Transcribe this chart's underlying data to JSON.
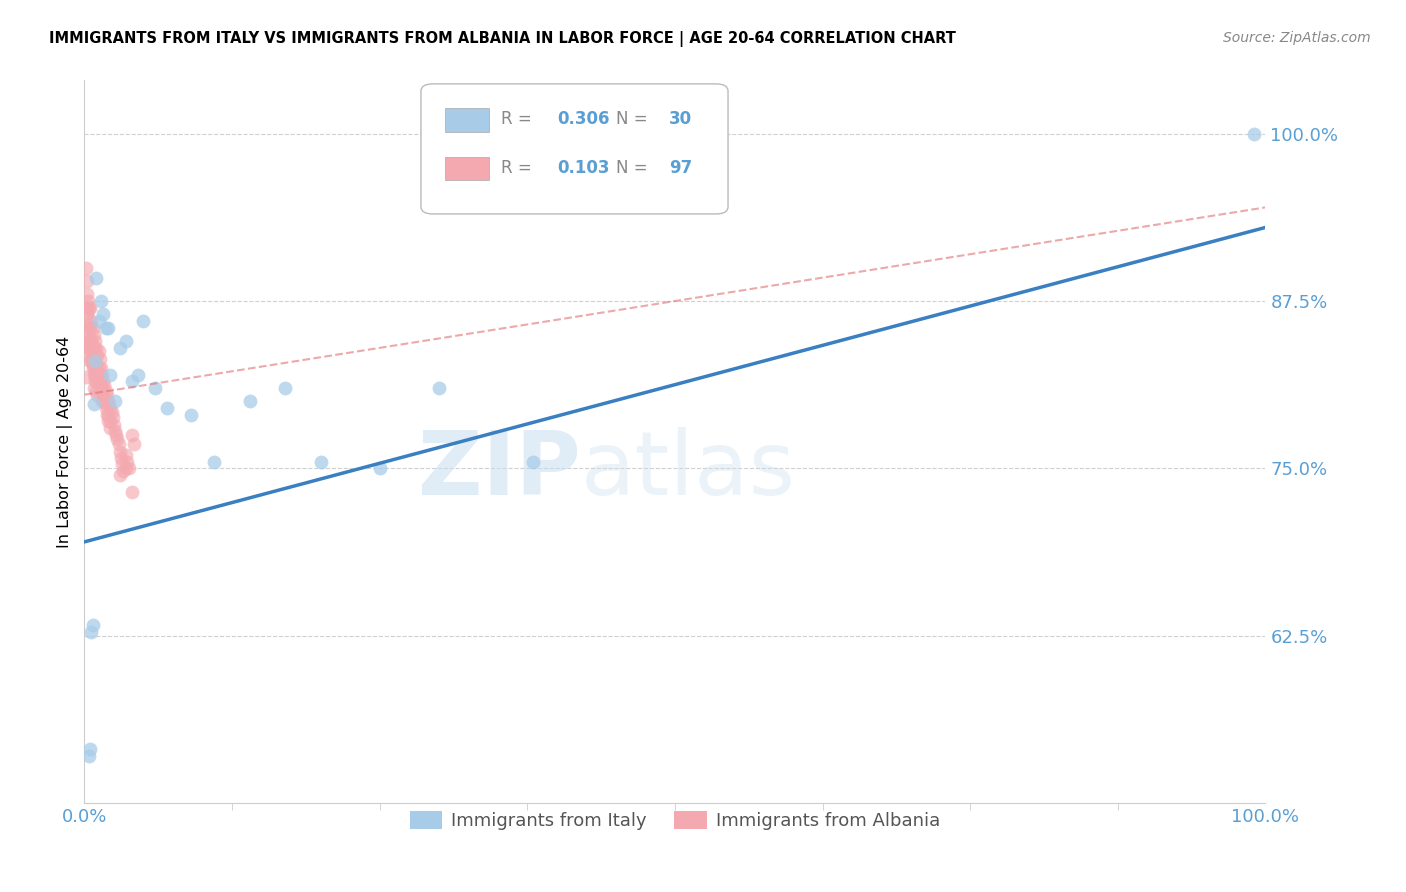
{
  "title": "IMMIGRANTS FROM ITALY VS IMMIGRANTS FROM ALBANIA IN LABOR FORCE | AGE 20-64 CORRELATION CHART",
  "source": "Source: ZipAtlas.com",
  "ylabel": "In Labor Force | Age 20-64",
  "xlim": [
    0.0,
    1.0
  ],
  "ylim": [
    0.5,
    1.04
  ],
  "yticks": [
    0.625,
    0.75,
    0.875,
    1.0
  ],
  "ytick_labels": [
    "62.5%",
    "75.0%",
    "87.5%",
    "100.0%"
  ],
  "xticks": [
    0.0,
    1.0
  ],
  "xtick_labels": [
    "0.0%",
    "100.0%"
  ],
  "italy_R": "0.306",
  "italy_N": "30",
  "albania_R": "0.103",
  "albania_N": "97",
  "italy_color": "#a8cce8",
  "albania_color": "#f4a9b0",
  "italy_line_color": "#3a7fc1",
  "albania_line_color": "#e07070",
  "legend_label_italy": "Immigrants from Italy",
  "legend_label_albania": "Immigrants from Albania",
  "watermark_zip": "ZIP",
  "watermark_atlas": "atlas",
  "italy_line_x0": 0.0,
  "italy_line_y0": 0.695,
  "italy_line_x1": 1.0,
  "italy_line_y1": 0.93,
  "albania_line_x0": 0.0,
  "albania_line_y0": 0.805,
  "albania_line_x1": 1.0,
  "albania_line_y1": 0.945,
  "italy_x": [
    0.004,
    0.005,
    0.006,
    0.007,
    0.008,
    0.009,
    0.01,
    0.012,
    0.014,
    0.016,
    0.018,
    0.02,
    0.022,
    0.026,
    0.03,
    0.035,
    0.04,
    0.045,
    0.05,
    0.06,
    0.07,
    0.09,
    0.11,
    0.14,
    0.17,
    0.2,
    0.25,
    0.3,
    0.38,
    0.99
  ],
  "italy_y": [
    0.535,
    0.54,
    0.628,
    0.633,
    0.798,
    0.83,
    0.892,
    0.86,
    0.875,
    0.865,
    0.855,
    0.855,
    0.82,
    0.8,
    0.84,
    0.845,
    0.815,
    0.82,
    0.86,
    0.81,
    0.795,
    0.79,
    0.755,
    0.8,
    0.81,
    0.755,
    0.75,
    0.81,
    0.755,
    1.0
  ],
  "albania_x": [
    0.001,
    0.001,
    0.002,
    0.002,
    0.002,
    0.003,
    0.003,
    0.003,
    0.004,
    0.004,
    0.004,
    0.005,
    0.005,
    0.005,
    0.005,
    0.006,
    0.006,
    0.006,
    0.007,
    0.007,
    0.007,
    0.008,
    0.008,
    0.008,
    0.009,
    0.009,
    0.009,
    0.01,
    0.01,
    0.01,
    0.011,
    0.011,
    0.012,
    0.012,
    0.012,
    0.013,
    0.013,
    0.014,
    0.014,
    0.015,
    0.015,
    0.015,
    0.016,
    0.016,
    0.017,
    0.017,
    0.018,
    0.018,
    0.019,
    0.02,
    0.02,
    0.021,
    0.022,
    0.022,
    0.023,
    0.024,
    0.025,
    0.026,
    0.027,
    0.028,
    0.029,
    0.03,
    0.031,
    0.032,
    0.033,
    0.035,
    0.036,
    0.038,
    0.04,
    0.042,
    0.001,
    0.002,
    0.002,
    0.003,
    0.004,
    0.004,
    0.005,
    0.005,
    0.006,
    0.006,
    0.007,
    0.008,
    0.008,
    0.009,
    0.01,
    0.011,
    0.012,
    0.013,
    0.015,
    0.016,
    0.018,
    0.019,
    0.02,
    0.022,
    0.03,
    0.035,
    0.04
  ],
  "albania_y": [
    0.9,
    0.87,
    0.89,
    0.865,
    0.845,
    0.875,
    0.855,
    0.84,
    0.87,
    0.855,
    0.84,
    0.87,
    0.855,
    0.845,
    0.83,
    0.86,
    0.845,
    0.83,
    0.855,
    0.84,
    0.825,
    0.85,
    0.84,
    0.825,
    0.845,
    0.83,
    0.82,
    0.84,
    0.825,
    0.815,
    0.835,
    0.82,
    0.838,
    0.825,
    0.815,
    0.832,
    0.82,
    0.825,
    0.812,
    0.82,
    0.81,
    0.8,
    0.815,
    0.805,
    0.812,
    0.8,
    0.808,
    0.798,
    0.805,
    0.8,
    0.79,
    0.798,
    0.794,
    0.785,
    0.792,
    0.788,
    0.782,
    0.778,
    0.775,
    0.772,
    0.768,
    0.762,
    0.758,
    0.753,
    0.748,
    0.76,
    0.755,
    0.75,
    0.775,
    0.768,
    0.818,
    0.88,
    0.865,
    0.87,
    0.858,
    0.848,
    0.845,
    0.835,
    0.84,
    0.832,
    0.828,
    0.82,
    0.81,
    0.815,
    0.808,
    0.805,
    0.82,
    0.815,
    0.808,
    0.8,
    0.795,
    0.79,
    0.785,
    0.78,
    0.745,
    0.75,
    0.732
  ]
}
